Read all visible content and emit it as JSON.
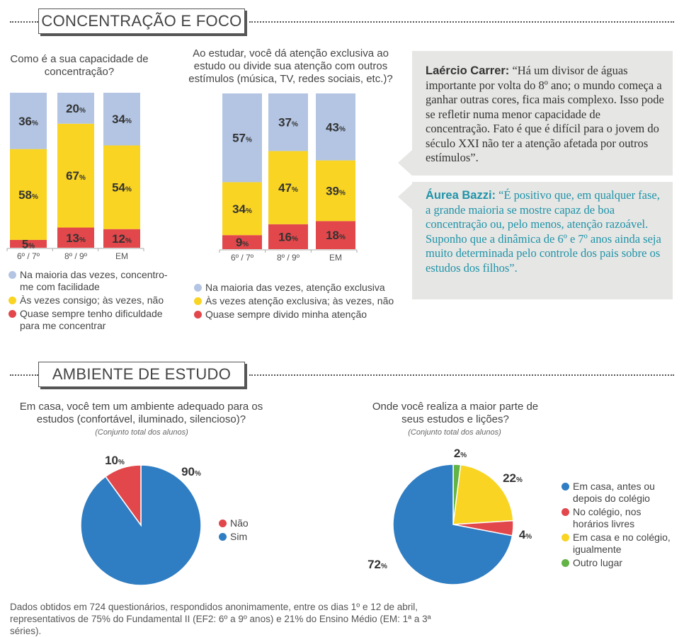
{
  "sections": {
    "concentracao": "CONCENTRAÇÃO E FOCO",
    "ambiente": "AMBIENTE DE ESTUDO"
  },
  "colors": {
    "blue_light": "#b3c5e3",
    "yellow": "#f9d422",
    "red": "#e2474b",
    "blue": "#2f7dc2",
    "green": "#63b446"
  },
  "chart1": {
    "question": "Como é a sua capacidade de concentração?",
    "legend": [
      {
        "label": "Na maioria das vezes, concentro-me com facilidade",
        "color": "#b3c5e3"
      },
      {
        "label": "Às vezes consigo; às vezes, não",
        "color": "#f9d422"
      },
      {
        "label": "Quase sempre tenho dificuldade para me concentrar",
        "color": "#e2474b"
      }
    ]
  },
  "chart2": {
    "question": "Ao estudar, você dá atenção exclusiva ao estudo ou divide sua atenção com outros estímulos (música, TV, redes sociais, etc.)?",
    "legend": [
      {
        "label": "Na maioria das vezes, atenção exclusiva",
        "color": "#b3c5e3"
      },
      {
        "label": "Às vezes atenção exclusiva; às vezes, não",
        "color": "#f9d422"
      },
      {
        "label": "Quase sempre divido minha atenção",
        "color": "#e2474b"
      }
    ]
  },
  "quotes": [
    {
      "who": "Laércio Carrer:",
      "text": " “Há um divisor de águas importante por volta do 8º ano; o mundo começa a ganhar outras cores, fica mais complexo. Isso pode se refletir numa menor capacidade de concentração. Fato é que é difícil para o jovem do século XXI não ter a atenção afetada por outros estímulos”."
    },
    {
      "who": "Áurea Bazzi:",
      "text": " “É positivo que, em qualquer fase, a grande maioria se mostre capaz de boa concentração ou, pelo menos, atenção razoável. Suponho que a dinâmica de 6º e 7º anos ainda seja muito determinada pelo controle dos pais sobre os estudos dos filhos”."
    }
  ],
  "chart3": {
    "question": "Em casa, você tem um ambiente adequado para os estudos (confortável, iluminado, silencioso)?",
    "note": "(Conjunto total dos alunos)",
    "legend": [
      {
        "label": "Não",
        "color": "#e2474b"
      },
      {
        "label": "Sim",
        "color": "#2f7dc2"
      }
    ]
  },
  "chart4": {
    "question": "Onde você realiza a maior parte de seus estudos e lições?",
    "note": "(Conjunto total dos alunos)",
    "legend": [
      {
        "label": "Em casa, antes ou depois do colégio",
        "color": "#2f7dc2"
      },
      {
        "label": "No colégio, nos horários livres",
        "color": "#e2474b"
      },
      {
        "label": "Em casa e no colégio, igualmente",
        "color": "#f9d422"
      },
      {
        "label": "Outro lugar",
        "color": "#63b446"
      }
    ]
  },
  "footer": "Dados obtidos em 724 questionários, respondidos anonimamente, entre os dias 1º e 12 de abril, representativos de 75% do Fundamental II (EF2: 6º a 9º anos) e 21% do Ensino Médio (EM: 1ª a 3ª séries).",
  "chart_data": [
    {
      "type": "bar",
      "stacked": true,
      "title": "Como é a sua capacidade de concentração?",
      "categories": [
        "6º / 7º",
        "8º / 9º",
        "EM"
      ],
      "series": [
        {
          "name": "Quase sempre tenho dificuldade para me concentrar",
          "color": "#e2474b",
          "values": [
            5,
            13,
            12
          ]
        },
        {
          "name": "Às vezes consigo; às vezes, não",
          "color": "#f9d422",
          "values": [
            58,
            67,
            54
          ]
        },
        {
          "name": "Na maioria das vezes, concentro-me com facilidade",
          "color": "#b3c5e3",
          "values": [
            36,
            20,
            34
          ]
        }
      ]
    },
    {
      "type": "bar",
      "stacked": true,
      "title": "Ao estudar, você dá atenção exclusiva ao estudo ou divide sua atenção com outros estímulos (música, TV, redes sociais, etc.)?",
      "categories": [
        "6º / 7º",
        "8º / 9º",
        "EM"
      ],
      "series": [
        {
          "name": "Quase sempre divido minha atenção",
          "color": "#e2474b",
          "values": [
            9,
            16,
            18
          ]
        },
        {
          "name": "Às vezes atenção exclusiva; às vezes, não",
          "color": "#f9d422",
          "values": [
            34,
            47,
            39
          ]
        },
        {
          "name": "Na maioria das vezes, atenção exclusiva",
          "color": "#b3c5e3",
          "values": [
            57,
            37,
            43
          ]
        }
      ]
    },
    {
      "type": "pie",
      "title": "Em casa, você tem um ambiente adequado para os estudos (confortável, iluminado, silencioso)?",
      "slices": [
        {
          "label": "Sim",
          "value": 90,
          "color": "#2f7dc2"
        },
        {
          "label": "Não",
          "value": 10,
          "color": "#e2474b"
        }
      ]
    },
    {
      "type": "pie",
      "title": "Onde você realiza a maior parte de seus estudos e lições?",
      "slices": [
        {
          "label": "Outro lugar",
          "value": 2,
          "color": "#63b446"
        },
        {
          "label": "Em casa e no colégio, igualmente",
          "value": 22,
          "color": "#f9d422"
        },
        {
          "label": "No colégio, nos horários livres",
          "value": 4,
          "color": "#e2474b"
        },
        {
          "label": "Em casa, antes ou depois do colégio",
          "value": 72,
          "color": "#2f7dc2"
        }
      ]
    }
  ]
}
